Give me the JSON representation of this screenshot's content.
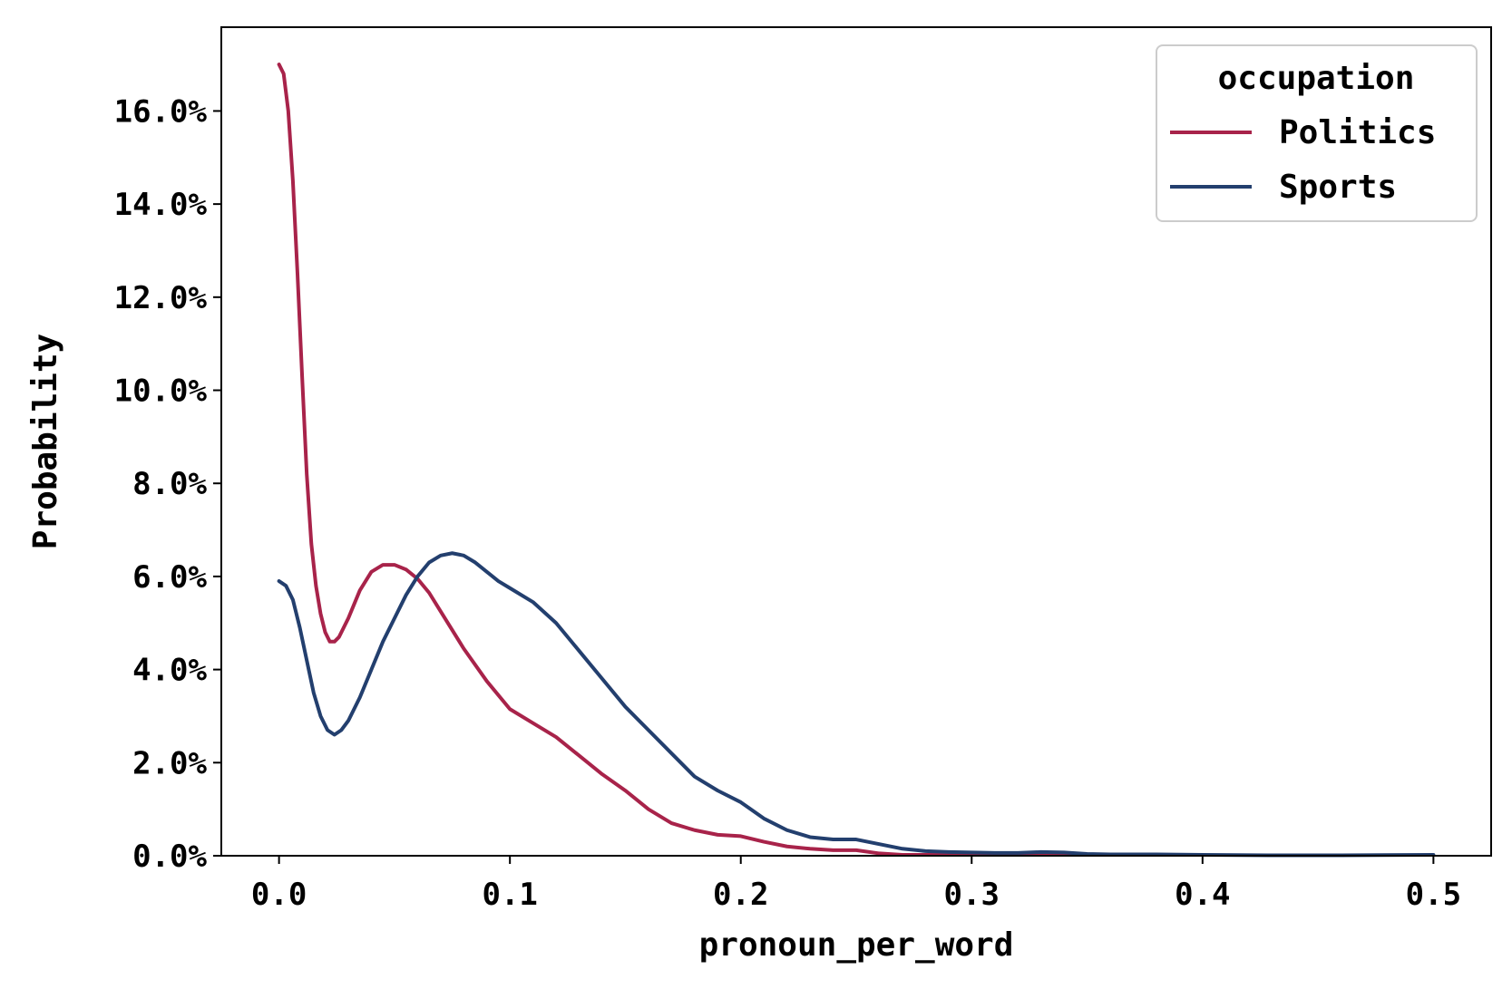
{
  "chart_data": {
    "type": "line",
    "xlabel": "pronoun_per_word",
    "ylabel": "Probability",
    "xlim": [
      -0.025,
      0.525
    ],
    "ylim": [
      0.0,
      0.178
    ],
    "x_ticks": [
      0.0,
      0.1,
      0.2,
      0.3,
      0.4,
      0.5
    ],
    "x_tick_labels": [
      "0.0",
      "0.1",
      "0.2",
      "0.3",
      "0.4",
      "0.5"
    ],
    "y_ticks": [
      0.0,
      0.02,
      0.04,
      0.06,
      0.08,
      0.1,
      0.12,
      0.14,
      0.16
    ],
    "y_tick_labels": [
      "0.0%",
      "2.0%",
      "4.0%",
      "6.0%",
      "8.0%",
      "10.0%",
      "12.0%",
      "14.0%",
      "16.0%"
    ],
    "grid": false,
    "legend": {
      "title": "occupation",
      "placement": "top-right"
    },
    "series": [
      {
        "name": "Politics",
        "color": "#a8234a",
        "x": [
          0.0,
          0.002,
          0.004,
          0.006,
          0.008,
          0.01,
          0.012,
          0.014,
          0.016,
          0.018,
          0.02,
          0.022,
          0.024,
          0.026,
          0.03,
          0.035,
          0.04,
          0.045,
          0.05,
          0.055,
          0.06,
          0.065,
          0.07,
          0.08,
          0.09,
          0.1,
          0.11,
          0.12,
          0.13,
          0.14,
          0.15,
          0.16,
          0.17,
          0.18,
          0.19,
          0.2,
          0.21,
          0.22,
          0.23,
          0.24,
          0.25,
          0.26,
          0.27,
          0.28,
          0.3,
          0.32,
          0.34,
          0.36,
          0.375
        ],
        "y": [
          0.17,
          0.168,
          0.16,
          0.145,
          0.125,
          0.103,
          0.082,
          0.067,
          0.058,
          0.052,
          0.048,
          0.046,
          0.046,
          0.047,
          0.051,
          0.057,
          0.061,
          0.0625,
          0.0625,
          0.0615,
          0.0595,
          0.0565,
          0.0525,
          0.0445,
          0.0375,
          0.0315,
          0.0285,
          0.0255,
          0.0215,
          0.0175,
          0.014,
          0.01,
          0.007,
          0.0055,
          0.0045,
          0.0042,
          0.003,
          0.002,
          0.0015,
          0.0012,
          0.0012,
          0.0005,
          0.0002,
          0.0002,
          0.0002,
          0.0002,
          0.0003,
          0.0002,
          0.0002
        ]
      },
      {
        "name": "Sports",
        "color": "#233f6e",
        "x": [
          0.0,
          0.003,
          0.006,
          0.009,
          0.012,
          0.015,
          0.018,
          0.021,
          0.024,
          0.027,
          0.03,
          0.035,
          0.04,
          0.045,
          0.05,
          0.055,
          0.06,
          0.065,
          0.07,
          0.075,
          0.08,
          0.085,
          0.09,
          0.095,
          0.1,
          0.11,
          0.12,
          0.13,
          0.14,
          0.15,
          0.16,
          0.17,
          0.18,
          0.19,
          0.2,
          0.21,
          0.22,
          0.23,
          0.24,
          0.25,
          0.26,
          0.27,
          0.28,
          0.29,
          0.3,
          0.31,
          0.32,
          0.33,
          0.34,
          0.35,
          0.36,
          0.38,
          0.4,
          0.43,
          0.46,
          0.5
        ],
        "y": [
          0.059,
          0.058,
          0.055,
          0.049,
          0.042,
          0.035,
          0.03,
          0.027,
          0.026,
          0.027,
          0.029,
          0.034,
          0.04,
          0.046,
          0.051,
          0.056,
          0.06,
          0.063,
          0.0645,
          0.065,
          0.0645,
          0.063,
          0.061,
          0.059,
          0.0575,
          0.0545,
          0.05,
          0.044,
          0.038,
          0.032,
          0.027,
          0.022,
          0.017,
          0.014,
          0.0115,
          0.008,
          0.0055,
          0.004,
          0.0035,
          0.0035,
          0.0025,
          0.0015,
          0.001,
          0.0008,
          0.0007,
          0.0006,
          0.0006,
          0.0008,
          0.0007,
          0.0004,
          0.0003,
          0.0003,
          0.0002,
          0.0001,
          0.0001,
          0.0002
        ]
      }
    ]
  }
}
